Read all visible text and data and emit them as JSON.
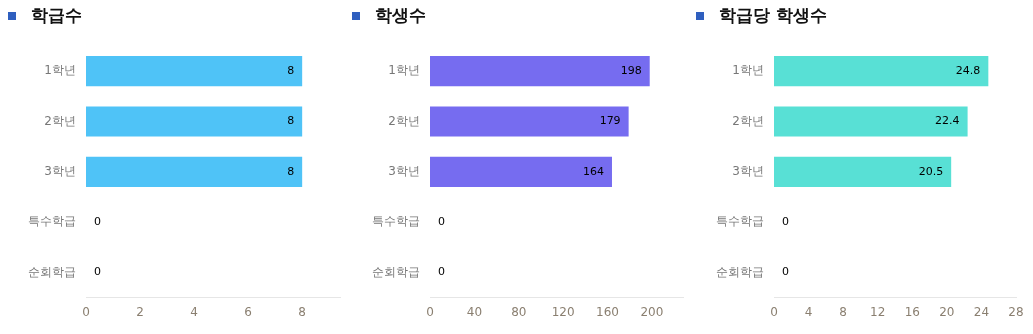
{
  "chart_data": [
    {
      "type": "bar",
      "orientation": "horizontal",
      "title": "학급수",
      "categories": [
        "1학년",
        "2학년",
        "3학년",
        "특수학급",
        "순회학급"
      ],
      "values": [
        8,
        8,
        8,
        0,
        0
      ],
      "color": "#4fc3f7",
      "xlim": [
        0,
        9.4
      ],
      "xticks": [
        0,
        2,
        4,
        6,
        8
      ],
      "data_labels": true
    },
    {
      "type": "bar",
      "orientation": "horizontal",
      "title": "학생수",
      "categories": [
        "1학년",
        "2학년",
        "3학년",
        "특수학급",
        "순회학급"
      ],
      "values": [
        198,
        179,
        164,
        0,
        0
      ],
      "color": "#766cf0",
      "xlim": [
        0,
        228
      ],
      "xticks": [
        0,
        40,
        80,
        120,
        160,
        200
      ],
      "data_labels": true
    },
    {
      "type": "bar",
      "orientation": "horizontal",
      "title": "학급당 학생수",
      "categories": [
        "1학년",
        "2학년",
        "3학년",
        "특수학급",
        "순회학급"
      ],
      "values": [
        24.8,
        22.4,
        20.5,
        0,
        0
      ],
      "color": "#58e0d5",
      "xlim": [
        0,
        28
      ],
      "xticks": [
        0,
        4,
        8,
        12,
        16,
        20,
        24,
        28
      ],
      "data_labels": true
    }
  ]
}
